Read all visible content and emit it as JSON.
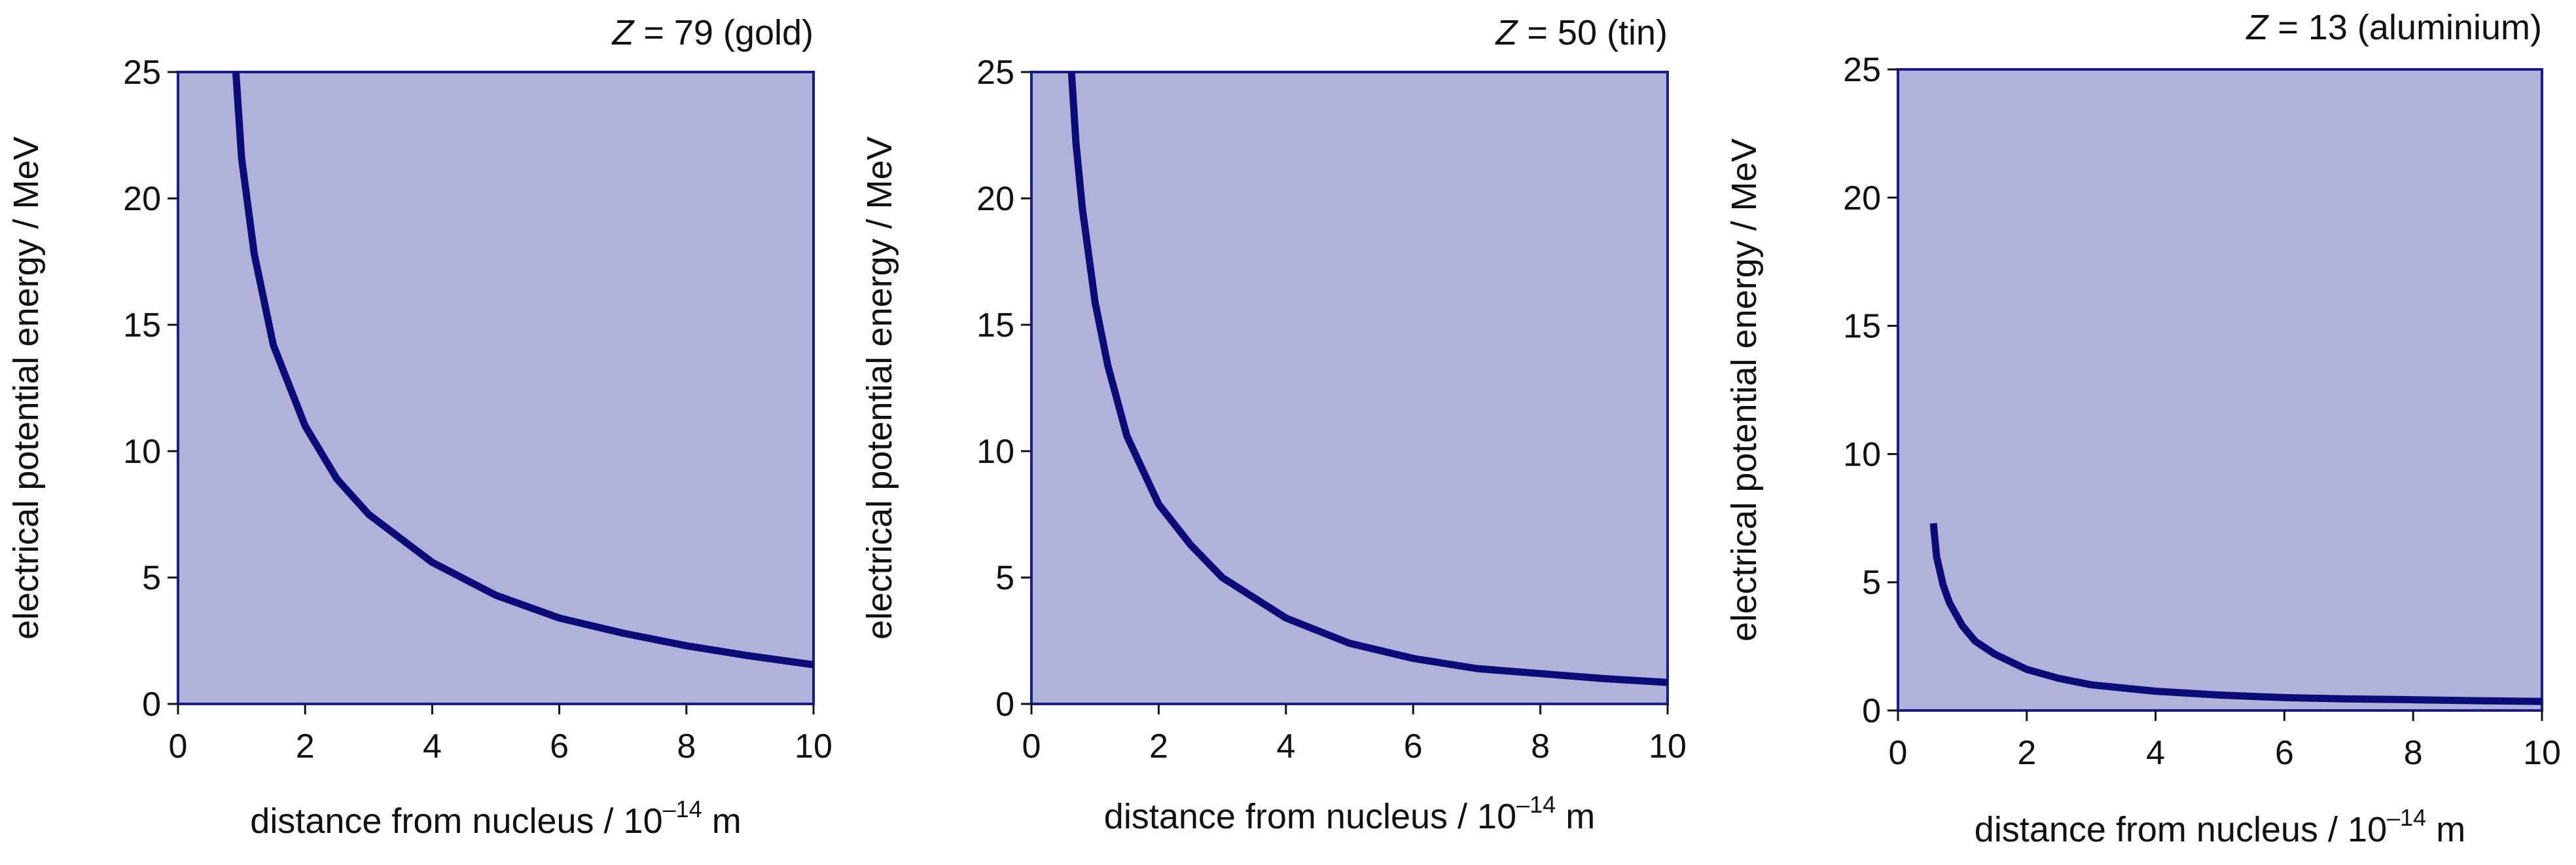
{
  "chart_data": [
    {
      "type": "line",
      "title_var": "Z",
      "title_rest": " = 79 (gold)",
      "xlabel": "distance from nucleus / 10",
      "xlabel_exp": "–14",
      "xlabel_unit": " m",
      "ylabel": "electrical potential energy / MeV",
      "xlim": [
        0,
        10
      ],
      "ylim": [
        0,
        25
      ],
      "xticks": [
        "0",
        "2",
        "4",
        "6",
        "8",
        "10"
      ],
      "yticks": [
        "0",
        "5",
        "10",
        "15",
        "20",
        "25"
      ],
      "grid": false,
      "series": [
        {
          "x": [
            0.91,
            1.0,
            1.2,
            1.5,
            2.0,
            2.5,
            3.0,
            4.0,
            5.0,
            6.0,
            7.0,
            8.0,
            9.0,
            10.0
          ],
          "y": [
            25.0,
            21.6,
            17.8,
            14.2,
            11.0,
            8.9,
            7.5,
            5.6,
            4.3,
            3.4,
            2.8,
            2.3,
            1.9,
            1.55
          ]
        }
      ]
    },
    {
      "type": "line",
      "title_var": "Z",
      "title_rest": " = 50 (tin)",
      "xlabel": "distance from nucleus / 10",
      "xlabel_exp": "–14",
      "xlabel_unit": " m",
      "ylabel": "electrical potential energy / MeV",
      "xlim": [
        0,
        10
      ],
      "ylim": [
        0,
        25
      ],
      "xticks": [
        "0",
        "2",
        "4",
        "6",
        "8",
        "10"
      ],
      "yticks": [
        "0",
        "5",
        "10",
        "15",
        "20",
        "25"
      ],
      "grid": false,
      "series": [
        {
          "x": [
            0.63,
            0.7,
            0.8,
            1.0,
            1.2,
            1.5,
            2.0,
            2.5,
            3.0,
            4.0,
            5.0,
            6.0,
            7.0,
            8.0,
            9.0,
            10.0
          ],
          "y": [
            25.0,
            22.2,
            19.6,
            15.9,
            13.4,
            10.6,
            7.9,
            6.3,
            5.0,
            3.4,
            2.4,
            1.8,
            1.4,
            1.2,
            1.0,
            0.85
          ]
        }
      ]
    },
    {
      "type": "line",
      "title_var": "Z",
      "title_rest": " = 13 (aluminium)",
      "xlabel": "distance from nucleus / 10",
      "xlabel_exp": "–14",
      "xlabel_unit": " m",
      "ylabel": "electrical potential energy / MeV",
      "xlim": [
        0,
        10
      ],
      "ylim": [
        0,
        25
      ],
      "xticks": [
        "0",
        "2",
        "4",
        "6",
        "8",
        "10"
      ],
      "yticks": [
        "0",
        "5",
        "10",
        "15",
        "20",
        "25"
      ],
      "grid": false,
      "series": [
        {
          "x": [
            0.55,
            0.6,
            0.7,
            0.8,
            1.0,
            1.2,
            1.5,
            2.0,
            2.5,
            3.0,
            4.0,
            5.0,
            6.0,
            7.0,
            8.0,
            9.0,
            10.0
          ],
          "y": [
            7.3,
            6.0,
            4.9,
            4.2,
            3.3,
            2.7,
            2.2,
            1.6,
            1.25,
            1.0,
            0.75,
            0.6,
            0.5,
            0.45,
            0.42,
            0.38,
            0.35
          ]
        }
      ]
    }
  ],
  "colors": {
    "plot_fill": "#b1b2d9",
    "frame": "#1a1c8c",
    "curve": "#0c0c78",
    "tick_color": "#111111",
    "text_color": "#111111"
  }
}
